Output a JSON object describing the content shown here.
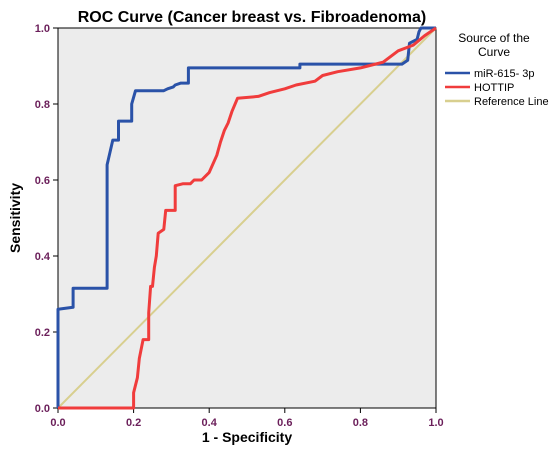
{
  "chart_data": {
    "type": "line",
    "title": "ROC Curve (Cancer breast vs.  Fibroadenoma)",
    "xlabel": "1 - Specificity",
    "ylabel": "Sensitivity",
    "xlim": [
      0,
      1
    ],
    "ylim": [
      0,
      1
    ],
    "x_ticks": [
      "0.0",
      "0.2",
      "0.4",
      "0.6",
      "0.8",
      "1.0"
    ],
    "y_ticks": [
      "0.0",
      "0.2",
      "0.4",
      "0.6",
      "0.8",
      "1.0"
    ],
    "grid": false,
    "legend": {
      "title": "Source of the Curve",
      "placement": "right"
    },
    "plot_background": "#ececec",
    "series": [
      {
        "name": "miR-615- 3p",
        "color": "#2a52a8",
        "points": [
          [
            0,
            0
          ],
          [
            0,
            0.26
          ],
          [
            0.04,
            0.265
          ],
          [
            0.04,
            0.315
          ],
          [
            0.13,
            0.315
          ],
          [
            0.13,
            0.64
          ],
          [
            0.145,
            0.705
          ],
          [
            0.16,
            0.705
          ],
          [
            0.16,
            0.755
          ],
          [
            0.195,
            0.755
          ],
          [
            0.195,
            0.8
          ],
          [
            0.205,
            0.835
          ],
          [
            0.28,
            0.835
          ],
          [
            0.29,
            0.84
          ],
          [
            0.305,
            0.845
          ],
          [
            0.31,
            0.85
          ],
          [
            0.325,
            0.855
          ],
          [
            0.345,
            0.855
          ],
          [
            0.345,
            0.895
          ],
          [
            0.64,
            0.895
          ],
          [
            0.64,
            0.905
          ],
          [
            0.91,
            0.905
          ],
          [
            0.925,
            0.915
          ],
          [
            0.93,
            0.96
          ],
          [
            0.95,
            0.97
          ],
          [
            0.955,
            0.99
          ],
          [
            0.96,
            1.0
          ],
          [
            1.0,
            1.0
          ]
        ]
      },
      {
        "name": "HOTTIP",
        "color": "#f03c3c",
        "points": [
          [
            0,
            0
          ],
          [
            0.12,
            0.0
          ],
          [
            0.2,
            0.0
          ],
          [
            0.2,
            0.04
          ],
          [
            0.21,
            0.08
          ],
          [
            0.215,
            0.13
          ],
          [
            0.225,
            0.18
          ],
          [
            0.24,
            0.18
          ],
          [
            0.24,
            0.25
          ],
          [
            0.245,
            0.32
          ],
          [
            0.25,
            0.32
          ],
          [
            0.255,
            0.37
          ],
          [
            0.26,
            0.4
          ],
          [
            0.265,
            0.46
          ],
          [
            0.28,
            0.47
          ],
          [
            0.285,
            0.52
          ],
          [
            0.31,
            0.52
          ],
          [
            0.31,
            0.585
          ],
          [
            0.33,
            0.59
          ],
          [
            0.35,
            0.59
          ],
          [
            0.36,
            0.6
          ],
          [
            0.38,
            0.6
          ],
          [
            0.4,
            0.62
          ],
          [
            0.42,
            0.665
          ],
          [
            0.43,
            0.7
          ],
          [
            0.44,
            0.73
          ],
          [
            0.45,
            0.75
          ],
          [
            0.46,
            0.78
          ],
          [
            0.475,
            0.815
          ],
          [
            0.53,
            0.82
          ],
          [
            0.56,
            0.83
          ],
          [
            0.6,
            0.84
          ],
          [
            0.63,
            0.85
          ],
          [
            0.68,
            0.86
          ],
          [
            0.7,
            0.875
          ],
          [
            0.74,
            0.885
          ],
          [
            0.8,
            0.895
          ],
          [
            0.82,
            0.9
          ],
          [
            0.86,
            0.91
          ],
          [
            0.9,
            0.94
          ],
          [
            0.94,
            0.955
          ],
          [
            0.97,
            0.98
          ],
          [
            1.0,
            1.0
          ]
        ]
      },
      {
        "name": "Reference Line",
        "color": "#d8cf8f",
        "points": [
          [
            0,
            0
          ],
          [
            1,
            1
          ]
        ]
      }
    ]
  }
}
